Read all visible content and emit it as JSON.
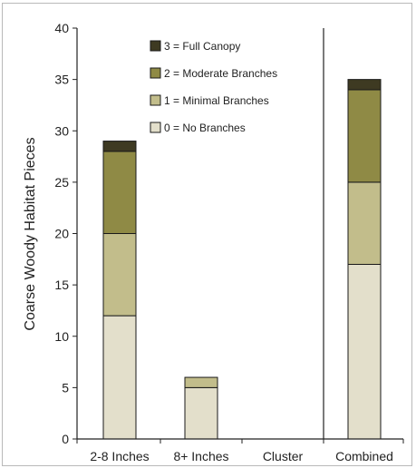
{
  "chart_data": {
    "type": "bar",
    "stacked": true,
    "categories": [
      "2-8 Inches",
      "8+ Inches",
      "Cluster",
      "Combined"
    ],
    "ylabel": "Coarse Woody Habitat Pieces",
    "xlabel": "",
    "ylim": [
      0,
      40
    ],
    "yticks": [
      0,
      5,
      10,
      15,
      20,
      25,
      30,
      35,
      40
    ],
    "grid": false,
    "legend_position": "top",
    "series": [
      {
        "name": "0 = No Branches",
        "color": "#e3dfcb",
        "values": [
          12,
          5,
          0,
          17
        ]
      },
      {
        "name": "1 = Minimal Branches",
        "color": "#c2bd8b",
        "values": [
          8,
          1,
          0,
          8
        ]
      },
      {
        "name": "2 = Moderate Branches",
        "color": "#8f8a45",
        "values": [
          8,
          0,
          0,
          9
        ]
      },
      {
        "name": "3 = Full Canopy",
        "color": "#3e3a22",
        "values": [
          1,
          0,
          0,
          1
        ]
      }
    ]
  }
}
